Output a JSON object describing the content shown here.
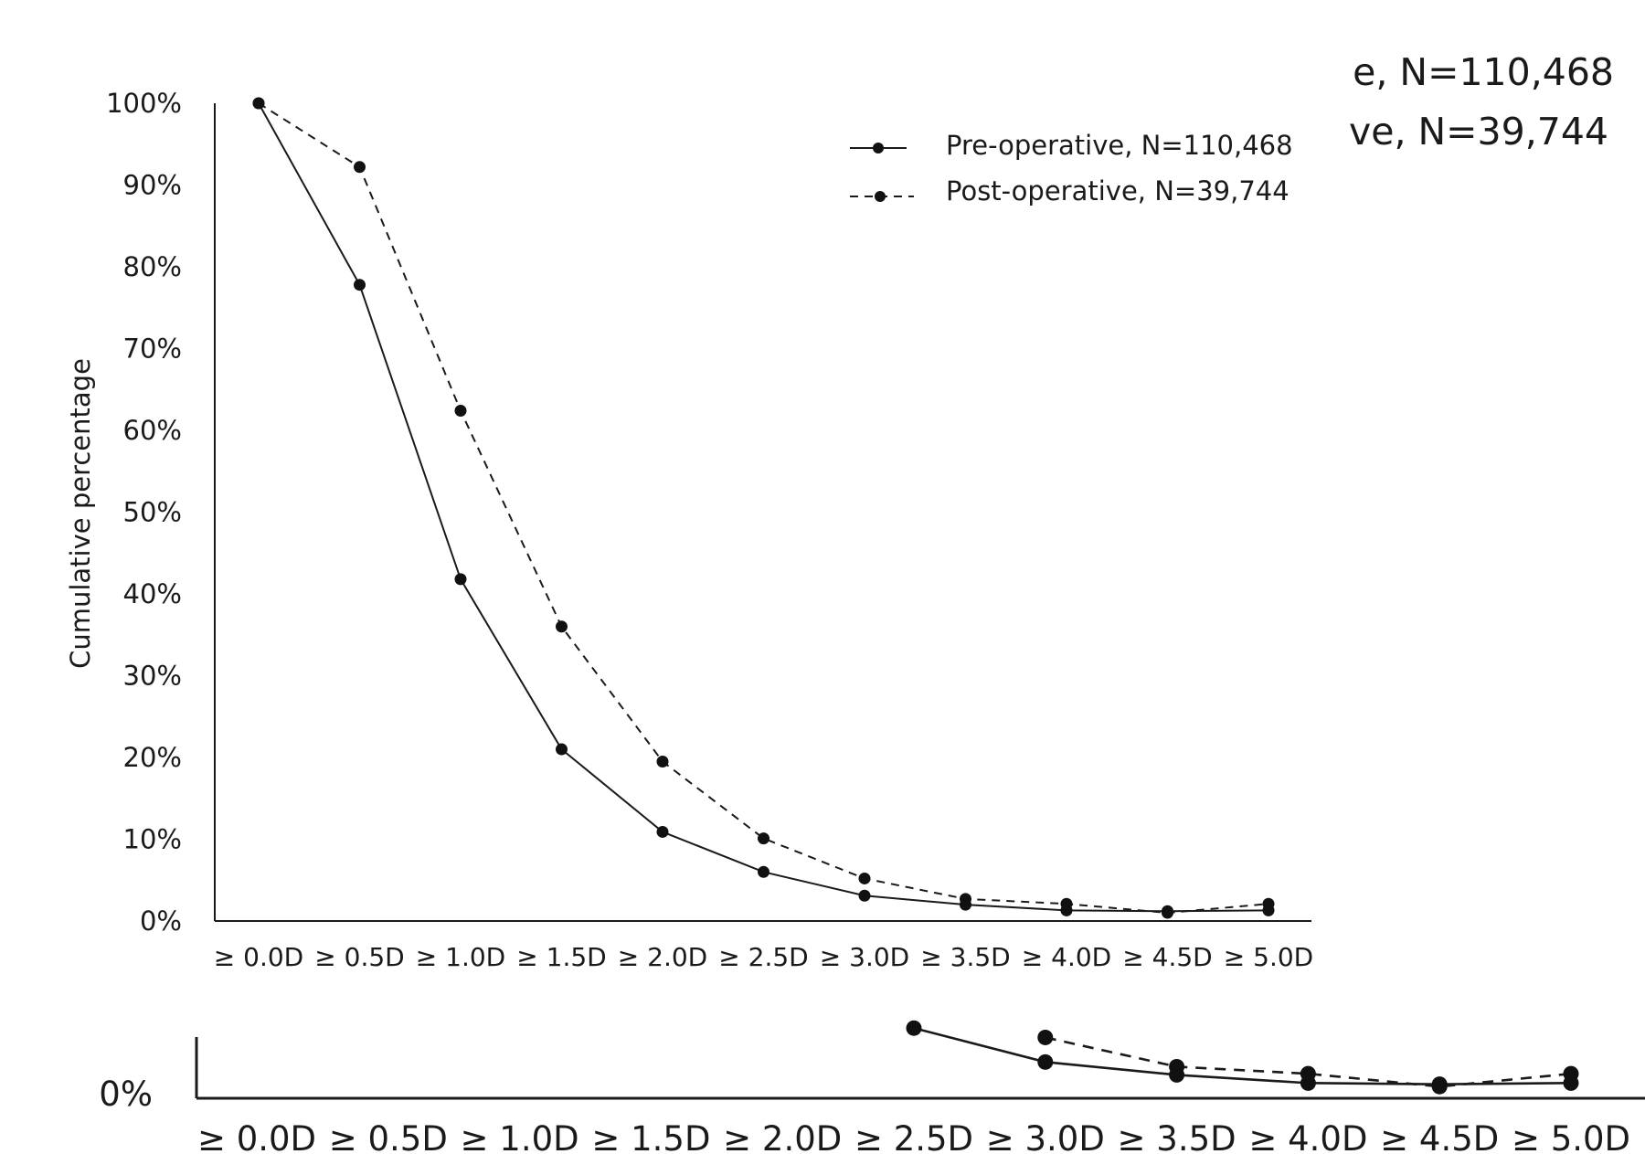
{
  "chart_data": {
    "type": "line",
    "ylabel": "Cumulative percentage",
    "xlabel": "",
    "categories": [
      "≥ 0.0D",
      "≥ 0.5D",
      "≥ 1.0D",
      "≥ 1.5D",
      "≥ 2.0D",
      "≥ 2.5D",
      "≥ 3.0D",
      "≥ 3.5D",
      "≥ 4.0D",
      "≥ 4.5D",
      "≥ 5.0D"
    ],
    "y_ticks": [
      "100%",
      "90%",
      "80%",
      "70%",
      "60%",
      "50%",
      "40%",
      "30%",
      "20%",
      "10%",
      "0%"
    ],
    "ylim": [
      0,
      100
    ],
    "legend_position": "top-right",
    "series": [
      {
        "name": "Pre-operative, N=110,468",
        "line_style": "solid",
        "values": [
          100,
          77.8,
          41.8,
          21.0,
          10.9,
          6.0,
          3.1,
          2.0,
          1.3,
          1.2,
          1.3
        ]
      },
      {
        "name": "Post-operative, N=39,744",
        "line_style": "dashed",
        "values": [
          100,
          92.2,
          62.4,
          36.0,
          19.5,
          10.1,
          5.2,
          2.7,
          2.1,
          1.0,
          2.1
        ]
      }
    ]
  },
  "crop_overlay": {
    "legend_fragments": [
      "e, N=110,468",
      "ve, N=39,744"
    ],
    "y_tick": "0%",
    "x_ticks": [
      "≥ 0.0D",
      "≥ 0.5D",
      "≥ 1.0D",
      "≥ 1.5D",
      "≥ 2.0D",
      "≥ 2.5D",
      "≥ 3.0D",
      "≥ 3.5D",
      "≥ 4.0D",
      "≥ 4.5D",
      "≥ 5.0D"
    ]
  },
  "colors": {
    "line": "#1a1a1a",
    "marker": "#111111",
    "background": "#ffffff"
  }
}
